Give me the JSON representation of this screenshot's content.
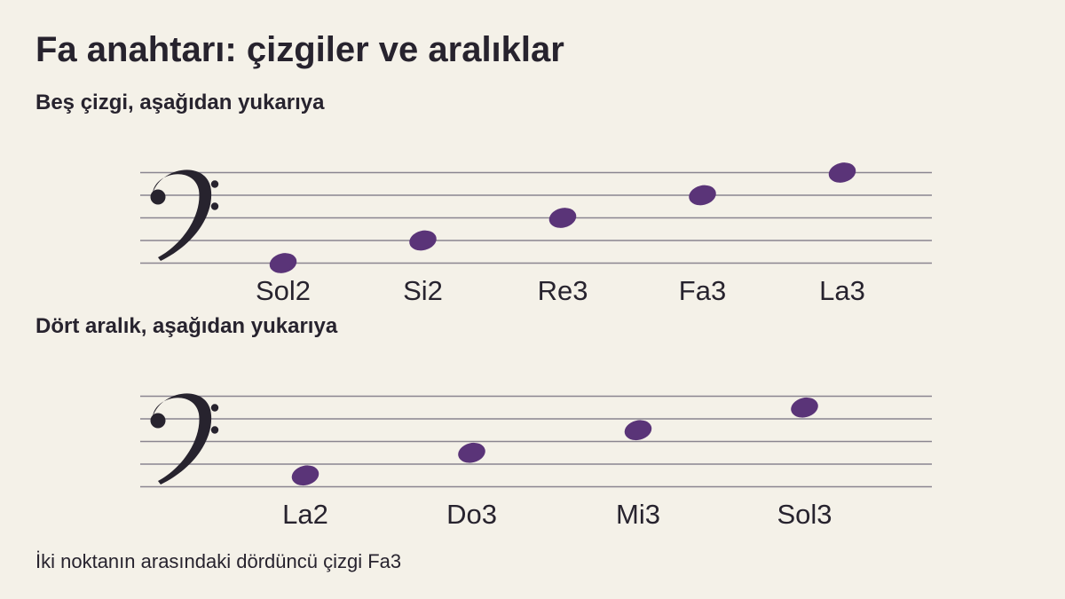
{
  "title": "Fa anahtarı: çizgiler ve aralıklar",
  "sections": {
    "lines": {
      "heading": "Beş çizgi, aşağıdan yukarıya",
      "notes": [
        {
          "label": "Sol2",
          "staff_position": 0
        },
        {
          "label": "Si2",
          "staff_position": 2
        },
        {
          "label": "Re3",
          "staff_position": 4
        },
        {
          "label": "Fa3",
          "staff_position": 6
        },
        {
          "label": "La3",
          "staff_position": 8
        }
      ]
    },
    "spaces": {
      "heading": "Dört aralık, aşağıdan yukarıya",
      "notes": [
        {
          "label": "La2",
          "staff_position": 1
        },
        {
          "label": "Do3",
          "staff_position": 3
        },
        {
          "label": "Mi3",
          "staff_position": 5
        },
        {
          "label": "Sol3",
          "staff_position": 7
        }
      ]
    }
  },
  "footnote": "İki noktanın arasındaki dördüncü çizgi Fa3",
  "colors": {
    "background": "#f4f1e8",
    "staff_line": "#8a8590",
    "note": "#5a3478",
    "clef": "#27232e",
    "text": "#27232e"
  },
  "icons": {
    "clef": "bass-clef-icon"
  }
}
